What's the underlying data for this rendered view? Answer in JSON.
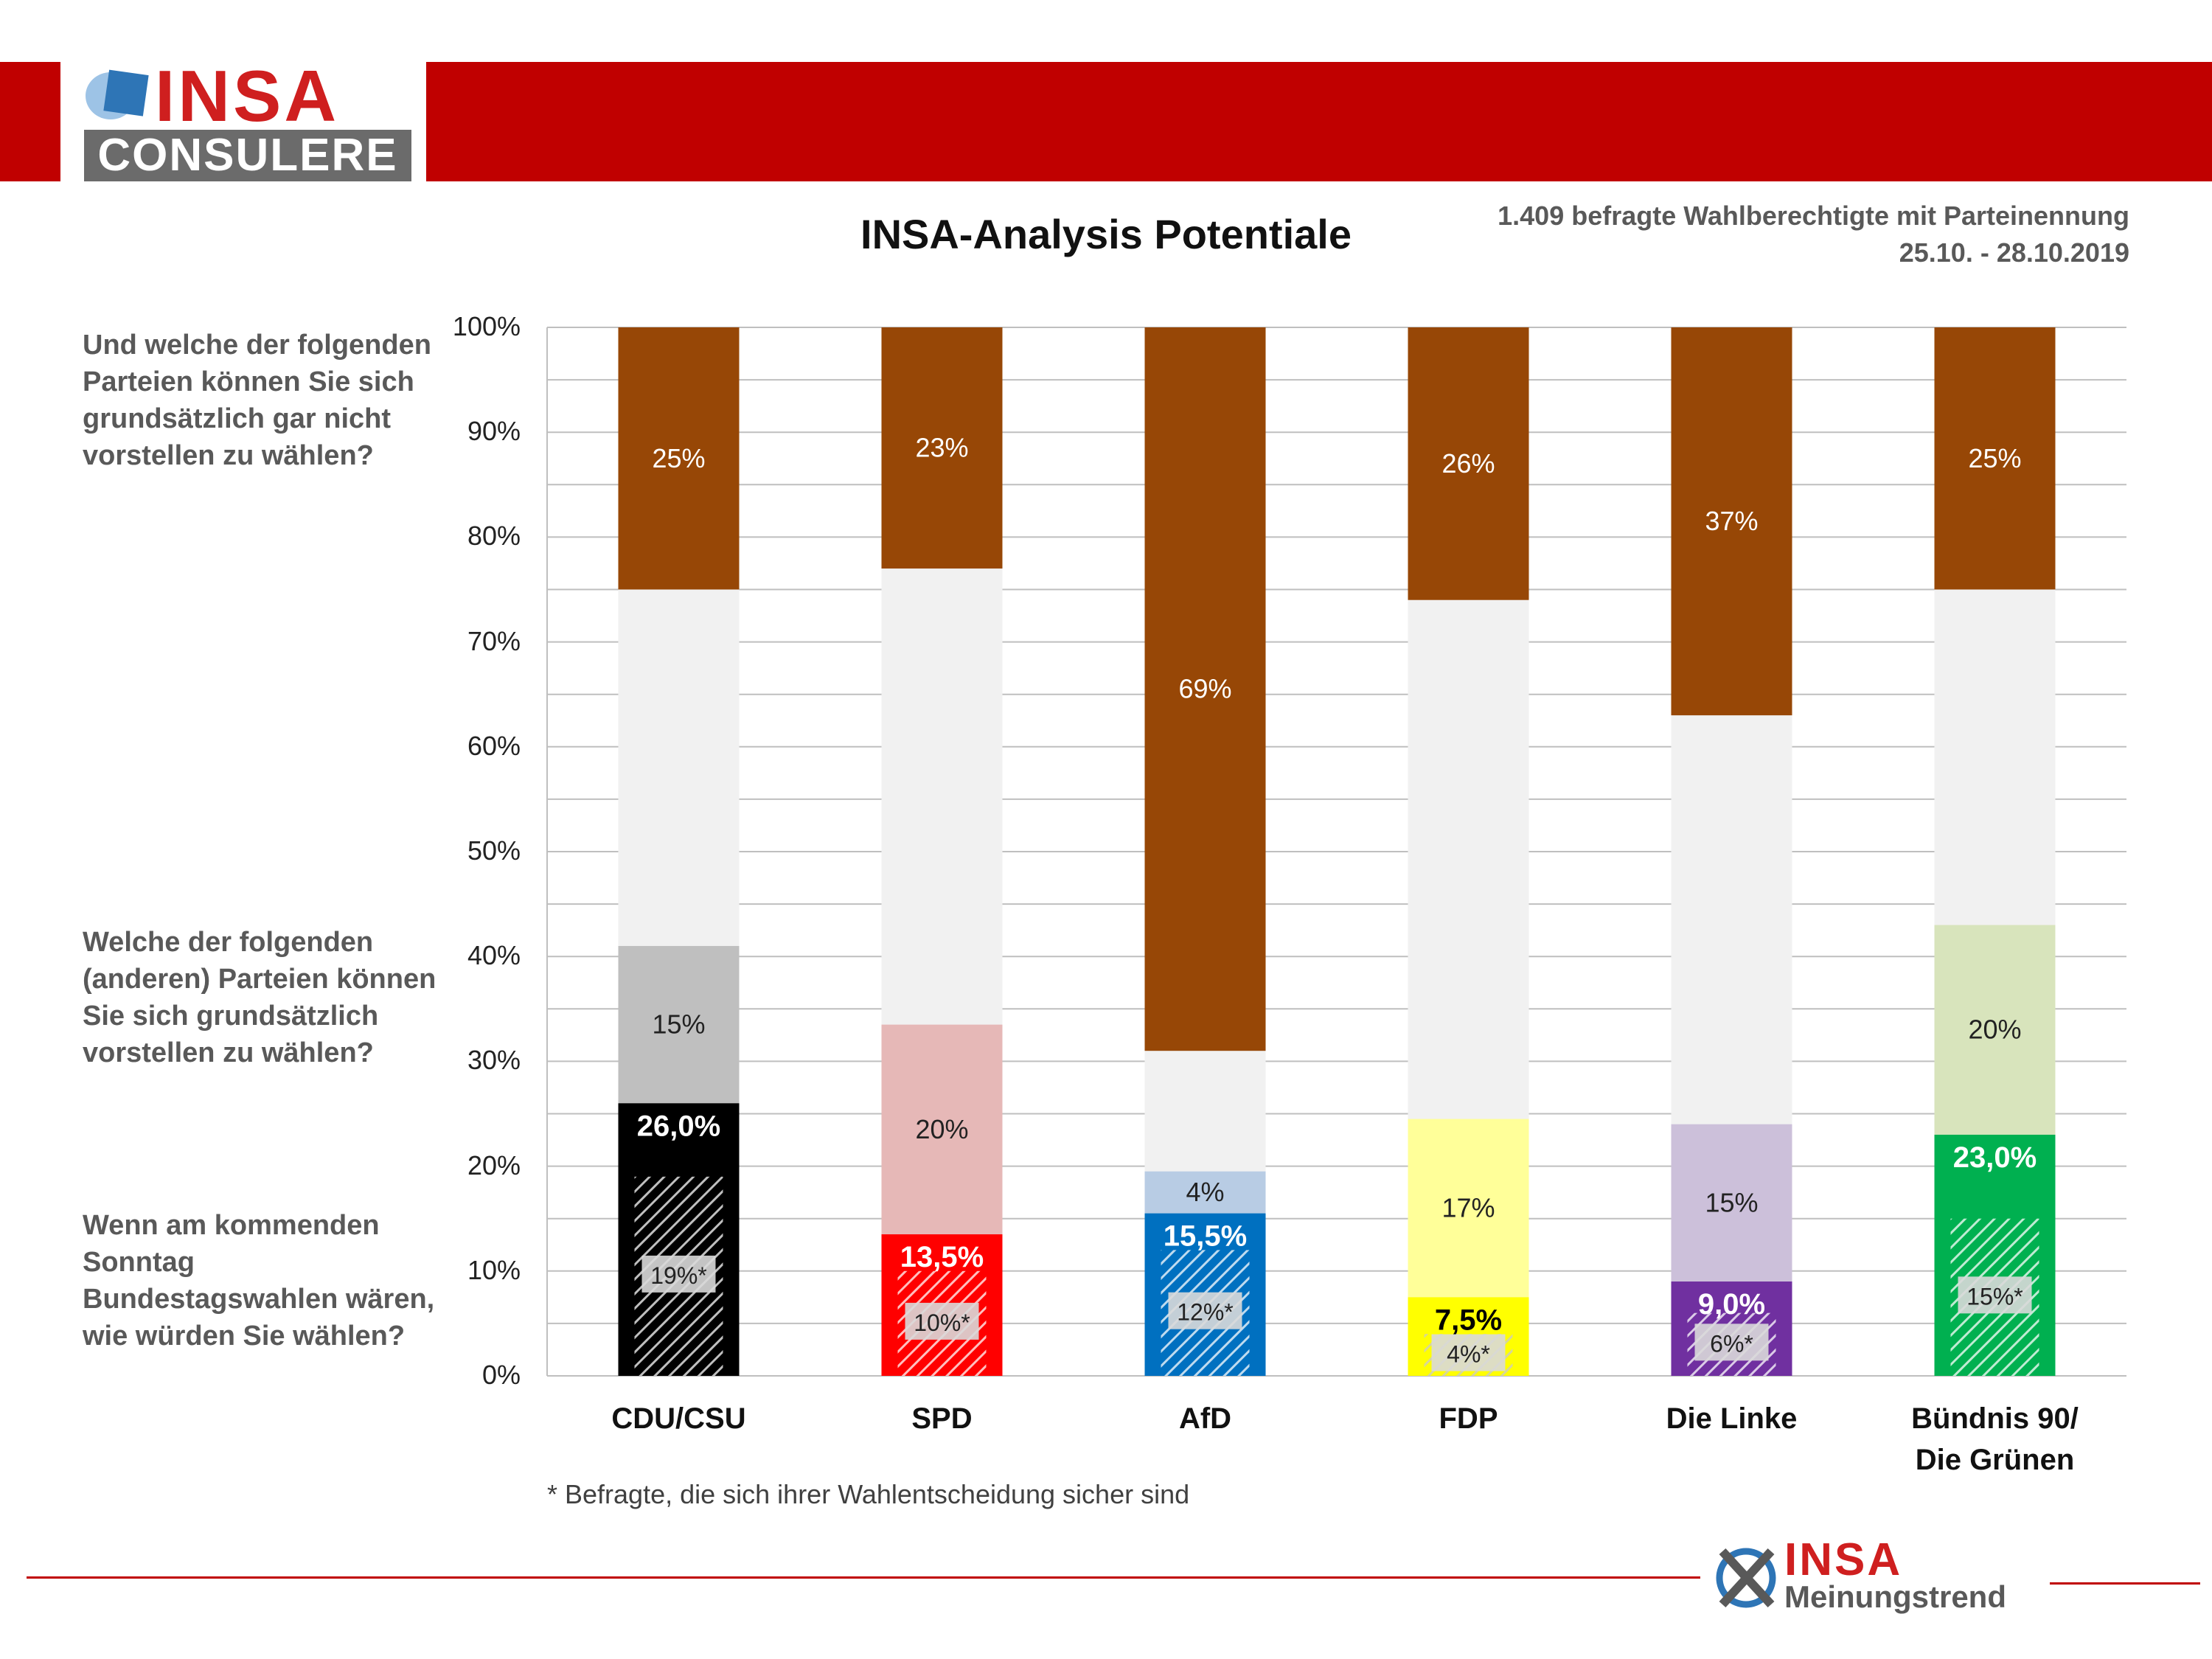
{
  "header": {
    "logo_insa": "INSA",
    "logo_consulere": "CONSULERE"
  },
  "title": "INSA-Analysis Potentiale",
  "meta": {
    "line1": "1.409 befragte Wahlberechtigte mit Parteinennung",
    "line2": "25.10. - 28.10.2019"
  },
  "questions": {
    "q1": "Und welche der folgenden Parteien können Sie sich grundsätzlich gar nicht vorstellen zu wählen?",
    "q2": "Welche der folgenden (anderen) Parteien können Sie sich grundsätzlich vorstellen zu wählen?",
    "q3": "Wenn am kommenden Sonntag Bundestagswahlen wären, wie würden Sie wählen?"
  },
  "footnote": "* Befragte, die sich ihrer Wahlentscheidung sicher sind",
  "footer_logo": {
    "brand": "INSA",
    "sub": "Meinungstrend"
  },
  "colors": {
    "not_vote": "#974706",
    "neutral": "#f1f1f1",
    "grid": "#bfbfbf",
    "accent_red": "#c00000"
  },
  "chart_data": {
    "type": "bar",
    "stacked": true,
    "y_axis": {
      "min": 0,
      "max": 100,
      "ticks": [
        "0%",
        "10%",
        "20%",
        "30%",
        "40%",
        "50%",
        "60%",
        "70%",
        "80%",
        "90%",
        "100%"
      ]
    },
    "grid": true,
    "categories": [
      "CDU/CSU",
      "SPD",
      "AfD",
      "FDP",
      "Die Linke",
      "Bündnis 90/ Die Grünen"
    ],
    "category_lines": [
      [
        "CDU/CSU"
      ],
      [
        "SPD"
      ],
      [
        "AfD"
      ],
      [
        "FDP"
      ],
      [
        "Die Linke"
      ],
      [
        "Bündnis 90/",
        "Die Grünen"
      ]
    ],
    "series": [
      {
        "key": "vote",
        "values": [
          26.0,
          13.5,
          15.5,
          7.5,
          9.0,
          23.0
        ],
        "labels": [
          "26,0%",
          "13,5%",
          "15,5%",
          "7,5%",
          "9,0%",
          "23,0%"
        ]
      },
      {
        "key": "sure",
        "values": [
          19,
          10,
          12,
          4,
          6,
          15
        ],
        "labels": [
          "19%*",
          "10%*",
          "12%*",
          "4%*",
          "6%*",
          "15%*"
        ]
      },
      {
        "key": "potential",
        "values": [
          15,
          20,
          4,
          17,
          15,
          20
        ],
        "labels": [
          "15%",
          "20%",
          "4%",
          "17%",
          "15%",
          "20%"
        ]
      },
      {
        "key": "not_vote",
        "values": [
          25,
          23,
          69,
          26,
          37,
          25
        ],
        "labels": [
          "25%",
          "23%",
          "69%",
          "26%",
          "37%",
          "25%"
        ]
      }
    ],
    "party_colors": {
      "vote": [
        "#000000",
        "#ff0000",
        "#0070c0",
        "#ffff00",
        "#7030a0",
        "#00b050"
      ],
      "potential": [
        "#bfbfbf",
        "#e6b8b7",
        "#b8cce4",
        "#ffff99",
        "#ccc0da",
        "#d8e4bc"
      ],
      "vote_label_color": [
        "#ffffff",
        "#ffffff",
        "#ffffff",
        "#000000",
        "#ffffff",
        "#ffffff"
      ]
    }
  }
}
